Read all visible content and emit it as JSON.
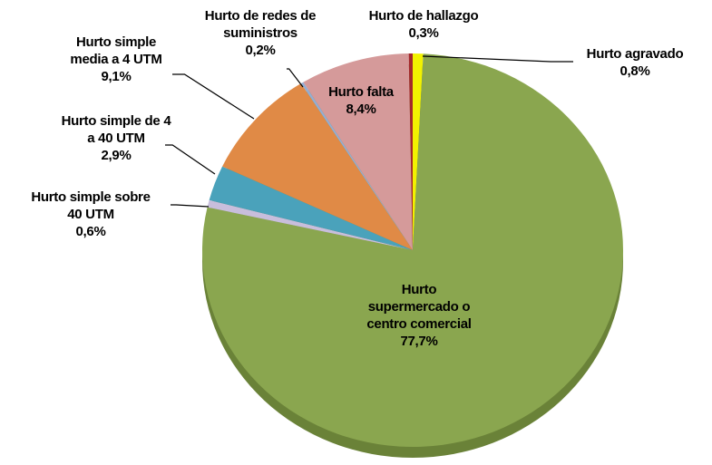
{
  "chart_data": {
    "type": "pie",
    "categories": [
      "Hurto agravado",
      "Hurto supermercado o centro comercial",
      "Hurto simple sobre 40 UTM",
      "Hurto simple de 4 a 40 UTM",
      "Hurto simple media a 4 UTM",
      "Hurto de redes de suministros",
      "Hurto falta",
      "Hurto de hallazgo"
    ],
    "values": [
      0.8,
      77.7,
      0.6,
      2.9,
      9.1,
      0.2,
      8.4,
      0.3
    ],
    "value_labels": [
      "0,8%",
      "77,7%",
      "0,6%",
      "2,9%",
      "9,1%",
      "0,2%",
      "8,4%",
      "0,3%"
    ],
    "colors": [
      "#f2f200",
      "#8aa64f",
      "#c8bedc",
      "#4aa2bb",
      "#e08a46",
      "#93aed4",
      "#d59a9a",
      "#a3282b"
    ]
  }
}
